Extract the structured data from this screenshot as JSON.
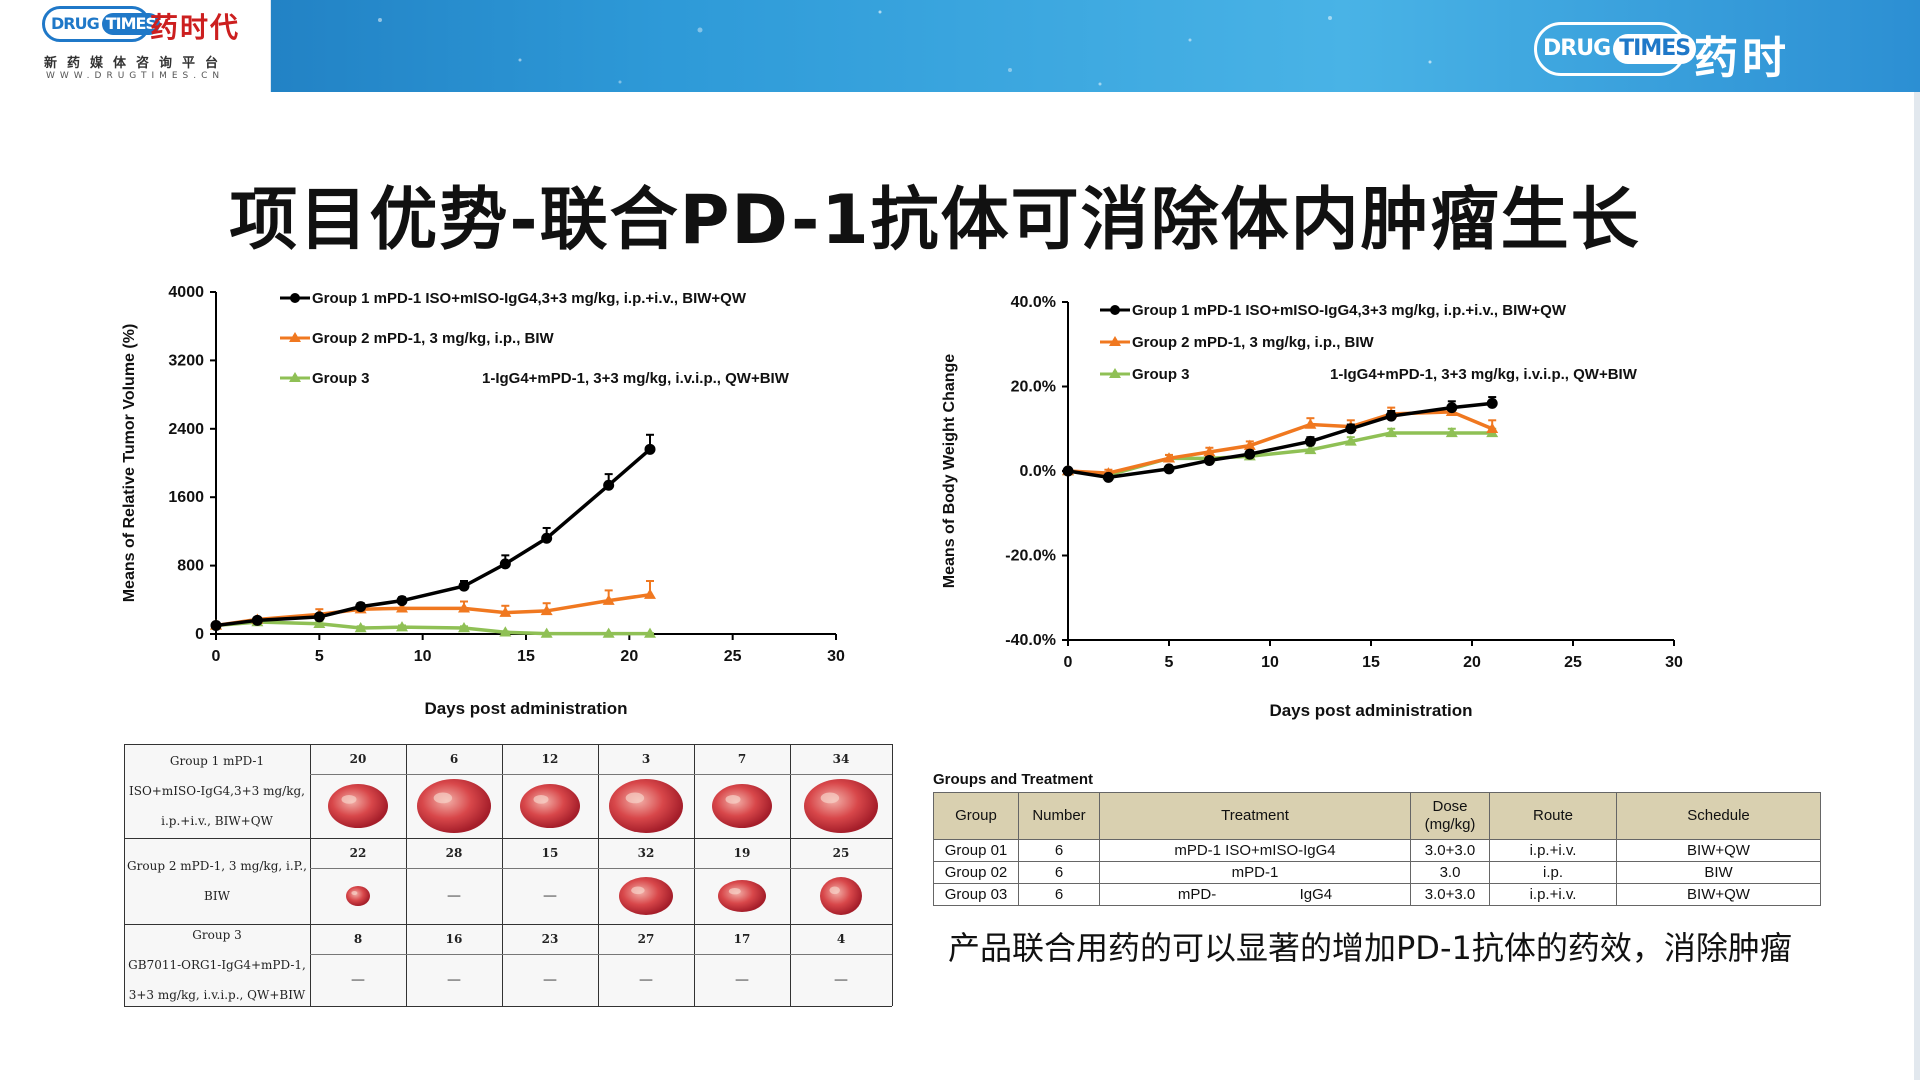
{
  "header": {
    "logo_en_part1": "DRUG",
    "logo_en_part2": "TIMES",
    "logo_cn": "药时代",
    "tagline": "新药媒体咨询平台",
    "url": "WWW.DRUGTIMES.CN"
  },
  "title": "项目优势-联合PD-1抗体可消除体内肿瘤生长",
  "colors": {
    "group1": "#000000",
    "group2": "#f07820",
    "group3": "#8fc055",
    "banner": "#2e9ad8"
  },
  "chart_data": [
    {
      "type": "line",
      "ylabel": "Means of Relative  Tumor Volume (%)",
      "xlabel": "Days post administration",
      "xlim": [
        0,
        30
      ],
      "ylim": [
        0,
        4000
      ],
      "xticks": [
        "0",
        "5",
        "10",
        "15",
        "20",
        "25",
        "30"
      ],
      "yticks": [
        "0",
        "800",
        "1600",
        "2400",
        "3200",
        "4000"
      ],
      "legend_position": "top-left",
      "series": [
        {
          "name": "Group 1 mPD-1 ISO+mISO-IgG4,3+3 mg/kg, i.p.+i.v., BIW+QW",
          "color": "#000000",
          "marker": "circle",
          "x": [
            0,
            2,
            5,
            7,
            9,
            12,
            14,
            16,
            19,
            21
          ],
          "y": [
            100,
            160,
            200,
            320,
            390,
            560,
            820,
            1120,
            1740,
            2160
          ],
          "err": [
            0,
            20,
            30,
            40,
            40,
            60,
            100,
            120,
            130,
            170
          ]
        },
        {
          "name": "Group 2 mPD-1, 3 mg/kg, i.p., BIW",
          "color": "#f07820",
          "marker": "triangle",
          "x": [
            0,
            2,
            5,
            7,
            9,
            12,
            14,
            16,
            19,
            21
          ],
          "y": [
            100,
            170,
            230,
            290,
            300,
            300,
            250,
            270,
            390,
            460
          ],
          "err": [
            0,
            20,
            60,
            60,
            60,
            80,
            80,
            90,
            120,
            160
          ]
        },
        {
          "name": "Group 3",
          "name_suffix": "1-IgG4+mPD-1, 3+3 mg/kg, i.v.i.p., QW+BIW",
          "color": "#8fc055",
          "marker": "triangle",
          "x": [
            0,
            2,
            5,
            7,
            9,
            12,
            14,
            16,
            19,
            21
          ],
          "y": [
            100,
            140,
            120,
            70,
            80,
            70,
            20,
            5,
            5,
            5
          ],
          "err": [
            0,
            20,
            30,
            20,
            20,
            20,
            10,
            5,
            5,
            5
          ]
        }
      ]
    },
    {
      "type": "line",
      "ylabel": "Means of Body Weight Change",
      "xlabel": "Days post administration",
      "xlim": [
        0,
        30
      ],
      "ylim": [
        -40,
        40
      ],
      "xticks": [
        "0",
        "5",
        "10",
        "15",
        "20",
        "25",
        "30"
      ],
      "yticks": [
        "-40.0%",
        "-20.0%",
        "0.0%",
        "20.0%",
        "40.0%"
      ],
      "legend_position": "top-left",
      "series": [
        {
          "name": "Group 1 mPD-1 ISO+mISO-IgG4,3+3 mg/kg, i.p.+i.v., BIW+QW",
          "color": "#000000",
          "marker": "circle",
          "x": [
            0,
            2,
            5,
            7,
            9,
            12,
            14,
            16,
            19,
            21
          ],
          "y": [
            0,
            -1.5,
            0.5,
            2.5,
            4,
            7,
            10,
            13,
            15,
            16
          ],
          "err": [
            0,
            0.5,
            0.5,
            0.8,
            0.8,
            1,
            1,
            1.2,
            1.5,
            1.5
          ]
        },
        {
          "name": "Group 2 mPD-1, 3 mg/kg, i.p., BIW",
          "color": "#f07820",
          "marker": "triangle",
          "x": [
            0,
            2,
            5,
            7,
            9,
            12,
            14,
            16,
            19,
            21
          ],
          "y": [
            0,
            -0.5,
            3,
            4.5,
            6,
            11,
            10.5,
            13.5,
            14,
            10
          ],
          "err": [
            0,
            0.8,
            0.8,
            1,
            1,
            1.5,
            1.5,
            1.5,
            1.5,
            2
          ]
        },
        {
          "name": "Group 3",
          "name_suffix": "1-IgG4+mPD-1, 3+3 mg/kg, i.v.i.p., QW+BIW",
          "color": "#8fc055",
          "marker": "triangle",
          "x": [
            0,
            2,
            5,
            7,
            9,
            12,
            14,
            16,
            19,
            21
          ],
          "y": [
            0,
            -1,
            3,
            3,
            3.5,
            5,
            7,
            9,
            9,
            9
          ],
          "err": [
            0,
            0.5,
            0.8,
            0.8,
            0.8,
            1,
            1,
            1,
            1,
            1
          ]
        }
      ]
    }
  ],
  "photo_panel": {
    "groups": [
      {
        "lines": [
          "Group 1 mPD-1",
          "ISO+mISO-IgG4,3+3 mg/kg,",
          "i.p.+i.v., BIW+QW"
        ],
        "ids": [
          "20",
          "6",
          "12",
          "3",
          "7",
          "34"
        ],
        "tumors": [
          true,
          true,
          true,
          true,
          true,
          true
        ]
      },
      {
        "lines": [
          "Group 2 mPD-1, 3 mg/kg, i.P.,",
          "BIW"
        ],
        "ids": [
          "22",
          "28",
          "15",
          "32",
          "19",
          "25"
        ],
        "tumors": [
          true,
          false,
          false,
          true,
          true,
          true
        ]
      },
      {
        "lines": [
          "Group 3",
          "GB7011-ORG1-IgG4+mPD-1,",
          "3+3 mg/kg, i.v.i.p., QW+BIW"
        ],
        "ids": [
          "8",
          "16",
          "23",
          "27",
          "17",
          "4"
        ],
        "tumors": [
          false,
          false,
          false,
          false,
          false,
          false
        ]
      }
    ]
  },
  "table": {
    "caption": "Groups and Treatment",
    "headers": [
      "Group",
      "Number",
      "Treatment",
      "Dose\n(mg/kg)",
      "Route",
      "Schedule"
    ],
    "rows": [
      [
        "Group 01",
        "6",
        "mPD-1 ISO+mISO-IgG4",
        "3.0+3.0",
        "i.p.+i.v.",
        "BIW+QW"
      ],
      [
        "Group 02",
        "6",
        "mPD-1",
        "3.0",
        "i.p.",
        "BIW"
      ],
      [
        "Group 03",
        "6",
        "mPD-                    IgG4",
        "3.0+3.0",
        "i.p.+i.v.",
        "BIW+QW"
      ]
    ]
  },
  "note": "产品联合用药的可以显著的增加PD-1抗体的药效，消除肿瘤"
}
